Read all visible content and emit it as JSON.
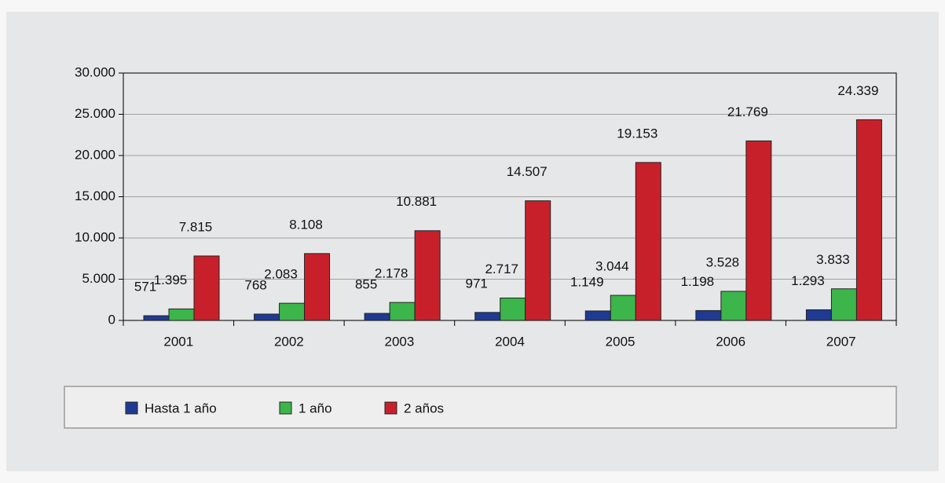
{
  "chart_data": {
    "type": "bar",
    "categories": [
      "2001",
      "2002",
      "2003",
      "2004",
      "2005",
      "2006",
      "2007"
    ],
    "series": [
      {
        "name": "Hasta 1 año",
        "color": "#1f3a93",
        "values": [
          571,
          768,
          855,
          971,
          1149,
          1198,
          1293
        ],
        "value_labels": [
          "571",
          "768",
          "855",
          "971",
          "1.149",
          "1.198",
          "1.293"
        ]
      },
      {
        "name": "1 año",
        "color": "#3cb54a",
        "values": [
          1395,
          2083,
          2178,
          2717,
          3044,
          3528,
          3833
        ],
        "value_labels": [
          "1.395",
          "2.083",
          "2.178",
          "2.717",
          "3.044",
          "3.528",
          "3.833"
        ]
      },
      {
        "name": "2 años",
        "color": "#c8202a",
        "values": [
          7815,
          8108,
          10881,
          14507,
          19153,
          21769,
          24339
        ],
        "value_labels": [
          "7.815",
          "8.108",
          "10.881",
          "14.507",
          "19.153",
          "21.769",
          "24.339"
        ]
      }
    ],
    "ylim": [
      0,
      30000
    ],
    "yticks": [
      0,
      {
        "value": 5000,
        "label": "5.000"
      },
      {
        "value": 10000,
        "label": "10.000"
      },
      {
        "value": 15000,
        "label": "15.000"
      },
      {
        "value": 20000,
        "label": "20.000"
      },
      {
        "value": 25000,
        "label": "25.000"
      },
      {
        "value": 30000,
        "label": "30.000"
      }
    ],
    "grid": true,
    "legend": "bottom"
  }
}
